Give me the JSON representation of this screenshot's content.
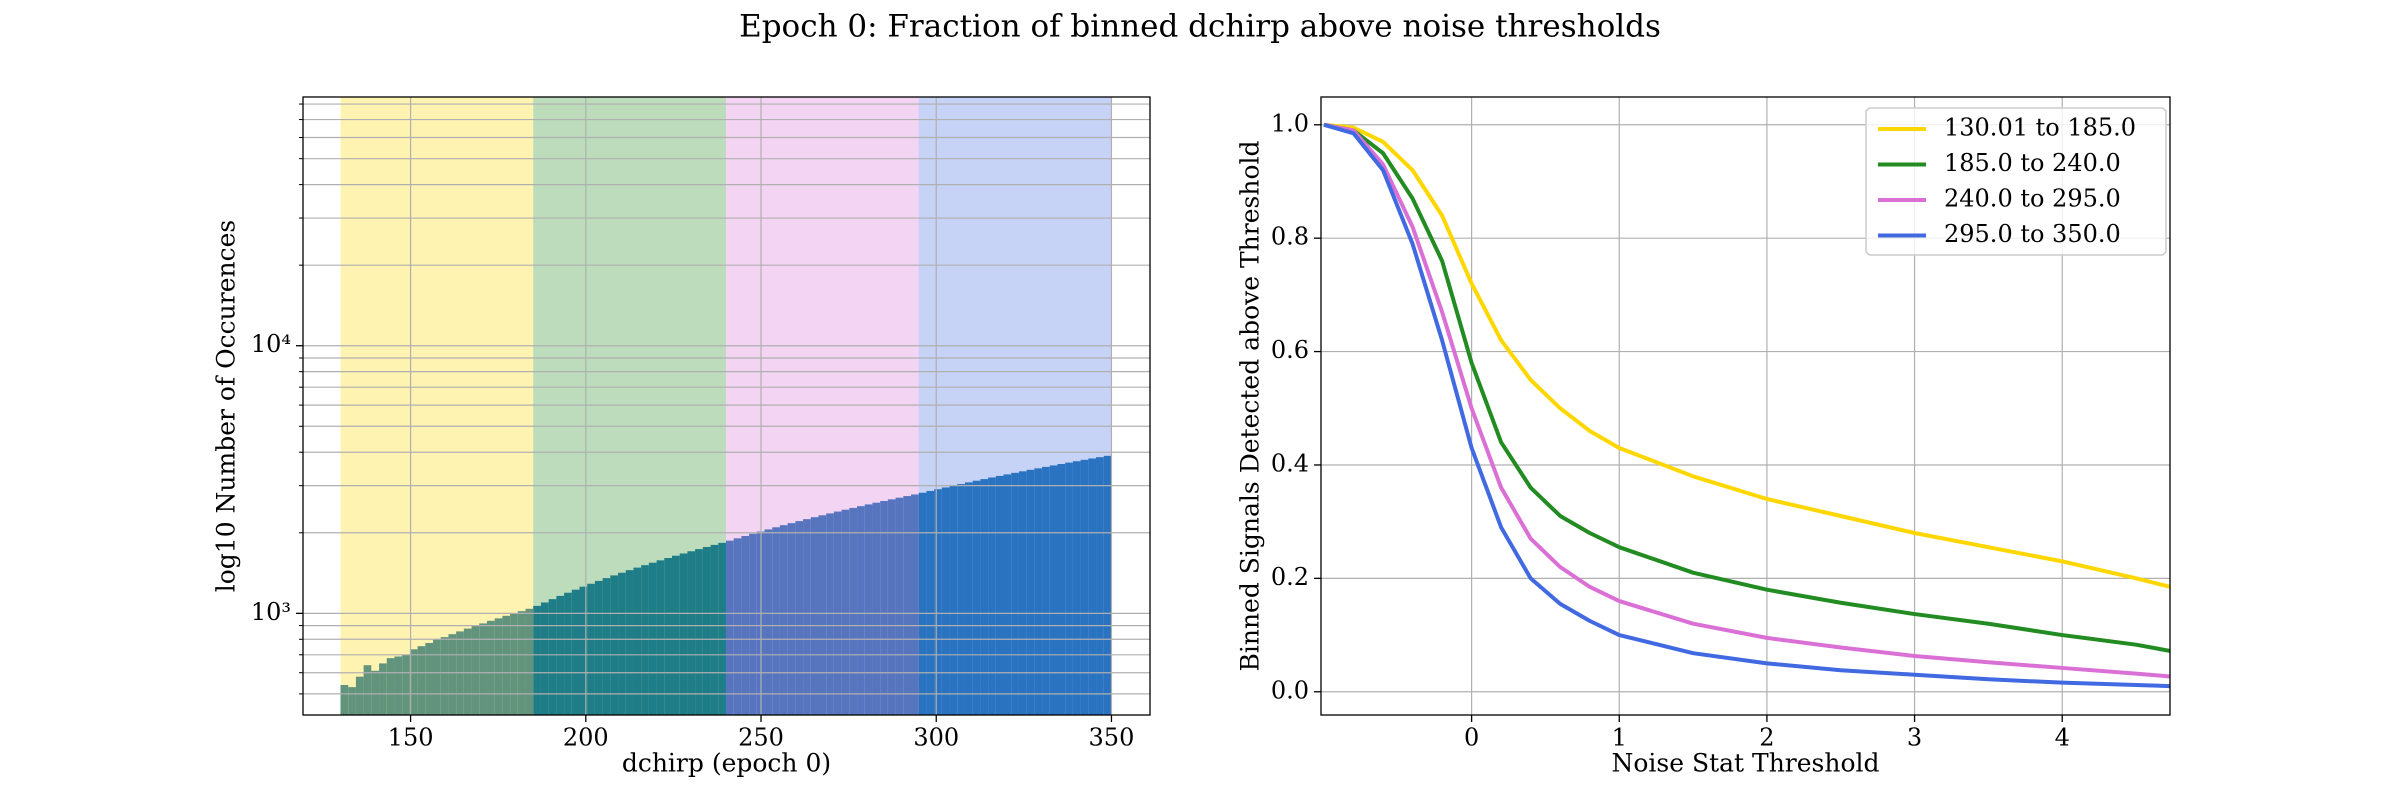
{
  "title": "Epoch 0: Fraction of binned dchirp above noise thresholds",
  "chart_data": [
    {
      "type": "histogram",
      "xlabel": "dchirp (epoch 0)",
      "ylabel": "log10 Number of Occurences",
      "color": "#1f77b4",
      "yscale": "log",
      "grid": true,
      "xlim": [
        119.3,
        361
      ],
      "ylim": [
        417,
        85000
      ],
      "xticks": [
        150,
        200,
        250,
        300,
        350
      ],
      "yticks": [
        {
          "value": 1000,
          "label": "10³"
        },
        {
          "value": 10000,
          "label": "10⁴"
        }
      ],
      "yminorticks": [
        500,
        600,
        700,
        800,
        900,
        2000,
        3000,
        4000,
        5000,
        6000,
        7000,
        8000,
        9000,
        20000,
        30000,
        40000,
        50000,
        60000,
        70000,
        80000
      ],
      "span_alpha": 0.3,
      "spans": [
        {
          "x0": 130.01,
          "x1": 185.0,
          "color": "#ffd700"
        },
        {
          "x0": 185.0,
          "x1": 240.0,
          "color": "#228b22"
        },
        {
          "x0": 240.0,
          "x1": 295.0,
          "color": "#da70d6"
        },
        {
          "x0": 295.0,
          "x1": 350.0,
          "color": "#4169e1"
        }
      ],
      "bins": [
        130,
        132.2,
        134.4,
        136.6,
        138.8,
        141,
        143.2,
        145.4,
        147.6,
        149.8,
        152,
        154.2,
        156.4,
        158.6,
        160.8,
        163,
        165.2,
        167.4,
        169.6,
        171.8,
        174,
        176.2,
        178.4,
        180.6,
        182.8,
        185,
        187.2,
        189.4,
        191.6,
        193.8,
        196,
        198.2,
        200.4,
        202.6,
        204.8,
        207,
        209.2,
        211.4,
        213.6,
        215.8,
        218,
        220.2,
        222.4,
        224.6,
        226.8,
        229,
        231.2,
        233.4,
        235.6,
        237.8,
        240,
        242.2,
        244.4,
        246.6,
        248.8,
        251,
        253.2,
        255.4,
        257.6,
        259.8,
        262,
        264.2,
        266.4,
        268.6,
        270.8,
        273,
        275.2,
        277.4,
        279.6,
        281.8,
        284,
        286.2,
        288.4,
        290.6,
        292.8,
        295,
        297.2,
        299.4,
        301.6,
        303.8,
        306,
        308.2,
        310.4,
        312.6,
        314.8,
        317,
        319.2,
        321.4,
        323.6,
        325.8,
        328,
        330.2,
        332.4,
        334.6,
        336.8,
        339,
        341.2,
        343.4,
        345.6,
        347.8,
        350
      ],
      "values": [
        540,
        530,
        580,
        640,
        610,
        650,
        680,
        690,
        700,
        734,
        754,
        775,
        800,
        815,
        836,
        856,
        877,
        897,
        917,
        938,
        958,
        979,
        999,
        1019,
        1040,
        1066,
        1098,
        1130,
        1162,
        1194,
        1226,
        1258,
        1290,
        1322,
        1354,
        1386,
        1418,
        1450,
        1482,
        1514,
        1546,
        1578,
        1610,
        1642,
        1674,
        1706,
        1738,
        1770,
        1802,
        1834,
        1869,
        1907,
        1945,
        1983,
        2021,
        2059,
        2097,
        2135,
        2173,
        2211,
        2249,
        2287,
        2325,
        2363,
        2401,
        2439,
        2477,
        2515,
        2553,
        2591,
        2629,
        2667,
        2705,
        2743,
        2781,
        2822,
        2866,
        2910,
        2954,
        2998,
        3042,
        3086,
        3130,
        3174,
        3218,
        3262,
        3306,
        3350,
        3394,
        3438,
        3482,
        3526,
        3570,
        3614,
        3658,
        3702,
        3746,
        3790,
        3834,
        3878
      ]
    },
    {
      "type": "line",
      "xlabel": "Noise Stat Threshold",
      "ylabel": "Binned Signals Detected above Threshold",
      "grid": true,
      "legend": "upper right",
      "xlim": [
        -1.02,
        4.73
      ],
      "ylim": [
        -0.041,
        1.049
      ],
      "xticks": [
        0,
        1,
        2,
        3,
        4
      ],
      "yticks": [
        {
          "value": 0,
          "label": "0.0"
        },
        {
          "value": 0.2,
          "label": "0.2"
        },
        {
          "value": 0.4,
          "label": "0.4"
        },
        {
          "value": 0.6,
          "label": "0.6"
        },
        {
          "value": 0.8,
          "label": "0.8"
        },
        {
          "value": 1,
          "label": "1.0"
        }
      ],
      "x": [
        -1.0,
        -0.8,
        -0.6,
        -0.4,
        -0.2,
        0,
        0.2,
        0.4,
        0.6,
        0.8,
        1.0,
        1.5,
        2,
        2.5,
        3,
        3.5,
        4,
        4.5,
        4.73
      ],
      "series": [
        {
          "name": "130.01 to 185.0",
          "color": "#ffd700",
          "values": [
            1.0,
            0.995,
            0.97,
            0.92,
            0.84,
            0.72,
            0.62,
            0.55,
            0.5,
            0.46,
            0.43,
            0.38,
            0.34,
            0.31,
            0.28,
            0.255,
            0.23,
            0.2,
            0.185
          ]
        },
        {
          "name": "185.0 to 240.0",
          "color": "#228b22",
          "values": [
            1.0,
            0.99,
            0.95,
            0.87,
            0.76,
            0.58,
            0.44,
            0.36,
            0.31,
            0.28,
            0.255,
            0.21,
            0.18,
            0.157,
            0.137,
            0.12,
            0.1,
            0.083,
            0.072
          ]
        },
        {
          "name": "240.0 to 295.0",
          "color": "#da70d6",
          "values": [
            1.0,
            0.99,
            0.93,
            0.82,
            0.67,
            0.5,
            0.36,
            0.27,
            0.22,
            0.185,
            0.16,
            0.12,
            0.095,
            0.078,
            0.063,
            0.052,
            0.042,
            0.032,
            0.027
          ]
        },
        {
          "name": "295.0 to 350.0",
          "color": "#4169e1",
          "values": [
            1.0,
            0.985,
            0.92,
            0.79,
            0.62,
            0.43,
            0.29,
            0.2,
            0.155,
            0.125,
            0.1,
            0.068,
            0.05,
            0.038,
            0.03,
            0.022,
            0.016,
            0.012,
            0.01
          ]
        }
      ]
    }
  ]
}
